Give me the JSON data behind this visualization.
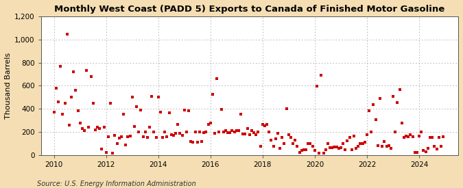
{
  "title": "Monthly West Coast (PADD 5) Exports to Canada of Finished Motor Gasoline",
  "ylabel": "Thousand Barrels",
  "source_text": "Source: U.S. Energy Information Administration",
  "fig_background_color": "#f5deb3",
  "plot_background_color": "#ffffff",
  "dot_color": "#cc0000",
  "ylim": [
    0,
    1200
  ],
  "yticks": [
    0,
    200,
    400,
    600,
    800,
    1000,
    1200
  ],
  "ytick_labels": [
    "0",
    "200",
    "400",
    "600",
    "800",
    "1,000",
    "1,200"
  ],
  "xlim_start": 2009.5,
  "xlim_end": 2025.5,
  "xticks": [
    2010,
    2012,
    2014,
    2016,
    2018,
    2020,
    2022,
    2024
  ],
  "data": [
    [
      2010.0,
      370
    ],
    [
      2010.08,
      580
    ],
    [
      2010.17,
      460
    ],
    [
      2010.25,
      770
    ],
    [
      2010.33,
      355
    ],
    [
      2010.42,
      450
    ],
    [
      2010.5,
      1045
    ],
    [
      2010.58,
      260
    ],
    [
      2010.67,
      500
    ],
    [
      2010.75,
      720
    ],
    [
      2010.83,
      560
    ],
    [
      2010.92,
      385
    ],
    [
      2011.0,
      280
    ],
    [
      2011.08,
      230
    ],
    [
      2011.17,
      210
    ],
    [
      2011.25,
      730
    ],
    [
      2011.33,
      245
    ],
    [
      2011.42,
      680
    ],
    [
      2011.5,
      450
    ],
    [
      2011.58,
      220
    ],
    [
      2011.67,
      240
    ],
    [
      2011.75,
      230
    ],
    [
      2011.83,
      55
    ],
    [
      2011.92,
      245
    ],
    [
      2012.0,
      25
    ],
    [
      2012.08,
      160
    ],
    [
      2012.17,
      450
    ],
    [
      2012.25,
      20
    ],
    [
      2012.33,
      170
    ],
    [
      2012.42,
      100
    ],
    [
      2012.5,
      150
    ],
    [
      2012.58,
      160
    ],
    [
      2012.67,
      355
    ],
    [
      2012.75,
      90
    ],
    [
      2012.83,
      160
    ],
    [
      2012.92,
      165
    ],
    [
      2013.0,
      500
    ],
    [
      2013.08,
      250
    ],
    [
      2013.17,
      420
    ],
    [
      2013.25,
      200
    ],
    [
      2013.33,
      390
    ],
    [
      2013.42,
      160
    ],
    [
      2013.5,
      200
    ],
    [
      2013.58,
      155
    ],
    [
      2013.67,
      245
    ],
    [
      2013.75,
      510
    ],
    [
      2013.83,
      200
    ],
    [
      2013.92,
      155
    ],
    [
      2014.0,
      500
    ],
    [
      2014.08,
      375
    ],
    [
      2014.17,
      155
    ],
    [
      2014.25,
      200
    ],
    [
      2014.33,
      160
    ],
    [
      2014.42,
      365
    ],
    [
      2014.5,
      180
    ],
    [
      2014.58,
      170
    ],
    [
      2014.67,
      190
    ],
    [
      2014.75,
      265
    ],
    [
      2014.83,
      190
    ],
    [
      2014.92,
      170
    ],
    [
      2015.0,
      390
    ],
    [
      2015.08,
      200
    ],
    [
      2015.17,
      385
    ],
    [
      2015.25,
      120
    ],
    [
      2015.33,
      115
    ],
    [
      2015.42,
      200
    ],
    [
      2015.5,
      110
    ],
    [
      2015.58,
      200
    ],
    [
      2015.67,
      120
    ],
    [
      2015.75,
      195
    ],
    [
      2015.83,
      200
    ],
    [
      2015.92,
      265
    ],
    [
      2016.0,
      280
    ],
    [
      2016.08,
      525
    ],
    [
      2016.17,
      190
    ],
    [
      2016.25,
      660
    ],
    [
      2016.33,
      200
    ],
    [
      2016.42,
      395
    ],
    [
      2016.5,
      200
    ],
    [
      2016.58,
      215
    ],
    [
      2016.67,
      195
    ],
    [
      2016.75,
      195
    ],
    [
      2016.83,
      210
    ],
    [
      2016.92,
      200
    ],
    [
      2017.0,
      215
    ],
    [
      2017.08,
      215
    ],
    [
      2017.17,
      355
    ],
    [
      2017.25,
      185
    ],
    [
      2017.33,
      185
    ],
    [
      2017.42,
      230
    ],
    [
      2017.5,
      180
    ],
    [
      2017.58,
      215
    ],
    [
      2017.67,
      195
    ],
    [
      2017.75,
      175
    ],
    [
      2017.83,
      200
    ],
    [
      2017.92,
      75
    ],
    [
      2018.0,
      265
    ],
    [
      2018.08,
      255
    ],
    [
      2018.17,
      265
    ],
    [
      2018.25,
      200
    ],
    [
      2018.33,
      130
    ],
    [
      2018.42,
      75
    ],
    [
      2018.5,
      140
    ],
    [
      2018.58,
      190
    ],
    [
      2018.67,
      60
    ],
    [
      2018.75,
      155
    ],
    [
      2018.83,
      100
    ],
    [
      2018.92,
      400
    ],
    [
      2019.0,
      175
    ],
    [
      2019.08,
      155
    ],
    [
      2019.17,
      100
    ],
    [
      2019.25,
      130
    ],
    [
      2019.33,
      75
    ],
    [
      2019.42,
      25
    ],
    [
      2019.5,
      40
    ],
    [
      2019.58,
      50
    ],
    [
      2019.67,
      50
    ],
    [
      2019.75,
      100
    ],
    [
      2019.83,
      100
    ],
    [
      2019.92,
      75
    ],
    [
      2020.0,
      40
    ],
    [
      2020.08,
      595
    ],
    [
      2020.17,
      20
    ],
    [
      2020.25,
      690
    ],
    [
      2020.33,
      20
    ],
    [
      2020.42,
      50
    ],
    [
      2020.5,
      100
    ],
    [
      2020.58,
      65
    ],
    [
      2020.67,
      65
    ],
    [
      2020.75,
      70
    ],
    [
      2020.83,
      70
    ],
    [
      2020.92,
      60
    ],
    [
      2021.0,
      65
    ],
    [
      2021.08,
      100
    ],
    [
      2021.17,
      50
    ],
    [
      2021.25,
      125
    ],
    [
      2021.33,
      155
    ],
    [
      2021.42,
      50
    ],
    [
      2021.5,
      165
    ],
    [
      2021.58,
      60
    ],
    [
      2021.67,
      75
    ],
    [
      2021.75,
      100
    ],
    [
      2021.83,
      100
    ],
    [
      2021.92,
      115
    ],
    [
      2022.0,
      175
    ],
    [
      2022.08,
      385
    ],
    [
      2022.17,
      200
    ],
    [
      2022.25,
      440
    ],
    [
      2022.33,
      310
    ],
    [
      2022.42,
      80
    ],
    [
      2022.5,
      490
    ],
    [
      2022.58,
      75
    ],
    [
      2022.67,
      120
    ],
    [
      2022.75,
      75
    ],
    [
      2022.83,
      80
    ],
    [
      2022.92,
      60
    ],
    [
      2023.0,
      510
    ],
    [
      2023.08,
      200
    ],
    [
      2023.17,
      455
    ],
    [
      2023.25,
      565
    ],
    [
      2023.33,
      280
    ],
    [
      2023.42,
      155
    ],
    [
      2023.5,
      165
    ],
    [
      2023.58,
      160
    ],
    [
      2023.67,
      175
    ],
    [
      2023.75,
      160
    ],
    [
      2023.83,
      25
    ],
    [
      2023.92,
      25
    ],
    [
      2024.0,
      165
    ],
    [
      2024.08,
      200
    ],
    [
      2024.17,
      40
    ],
    [
      2024.25,
      30
    ],
    [
      2024.33,
      60
    ],
    [
      2024.42,
      155
    ],
    [
      2024.5,
      155
    ],
    [
      2024.58,
      75
    ],
    [
      2024.67,
      55
    ],
    [
      2024.75,
      155
    ],
    [
      2024.83,
      75
    ],
    [
      2024.92,
      160
    ]
  ]
}
